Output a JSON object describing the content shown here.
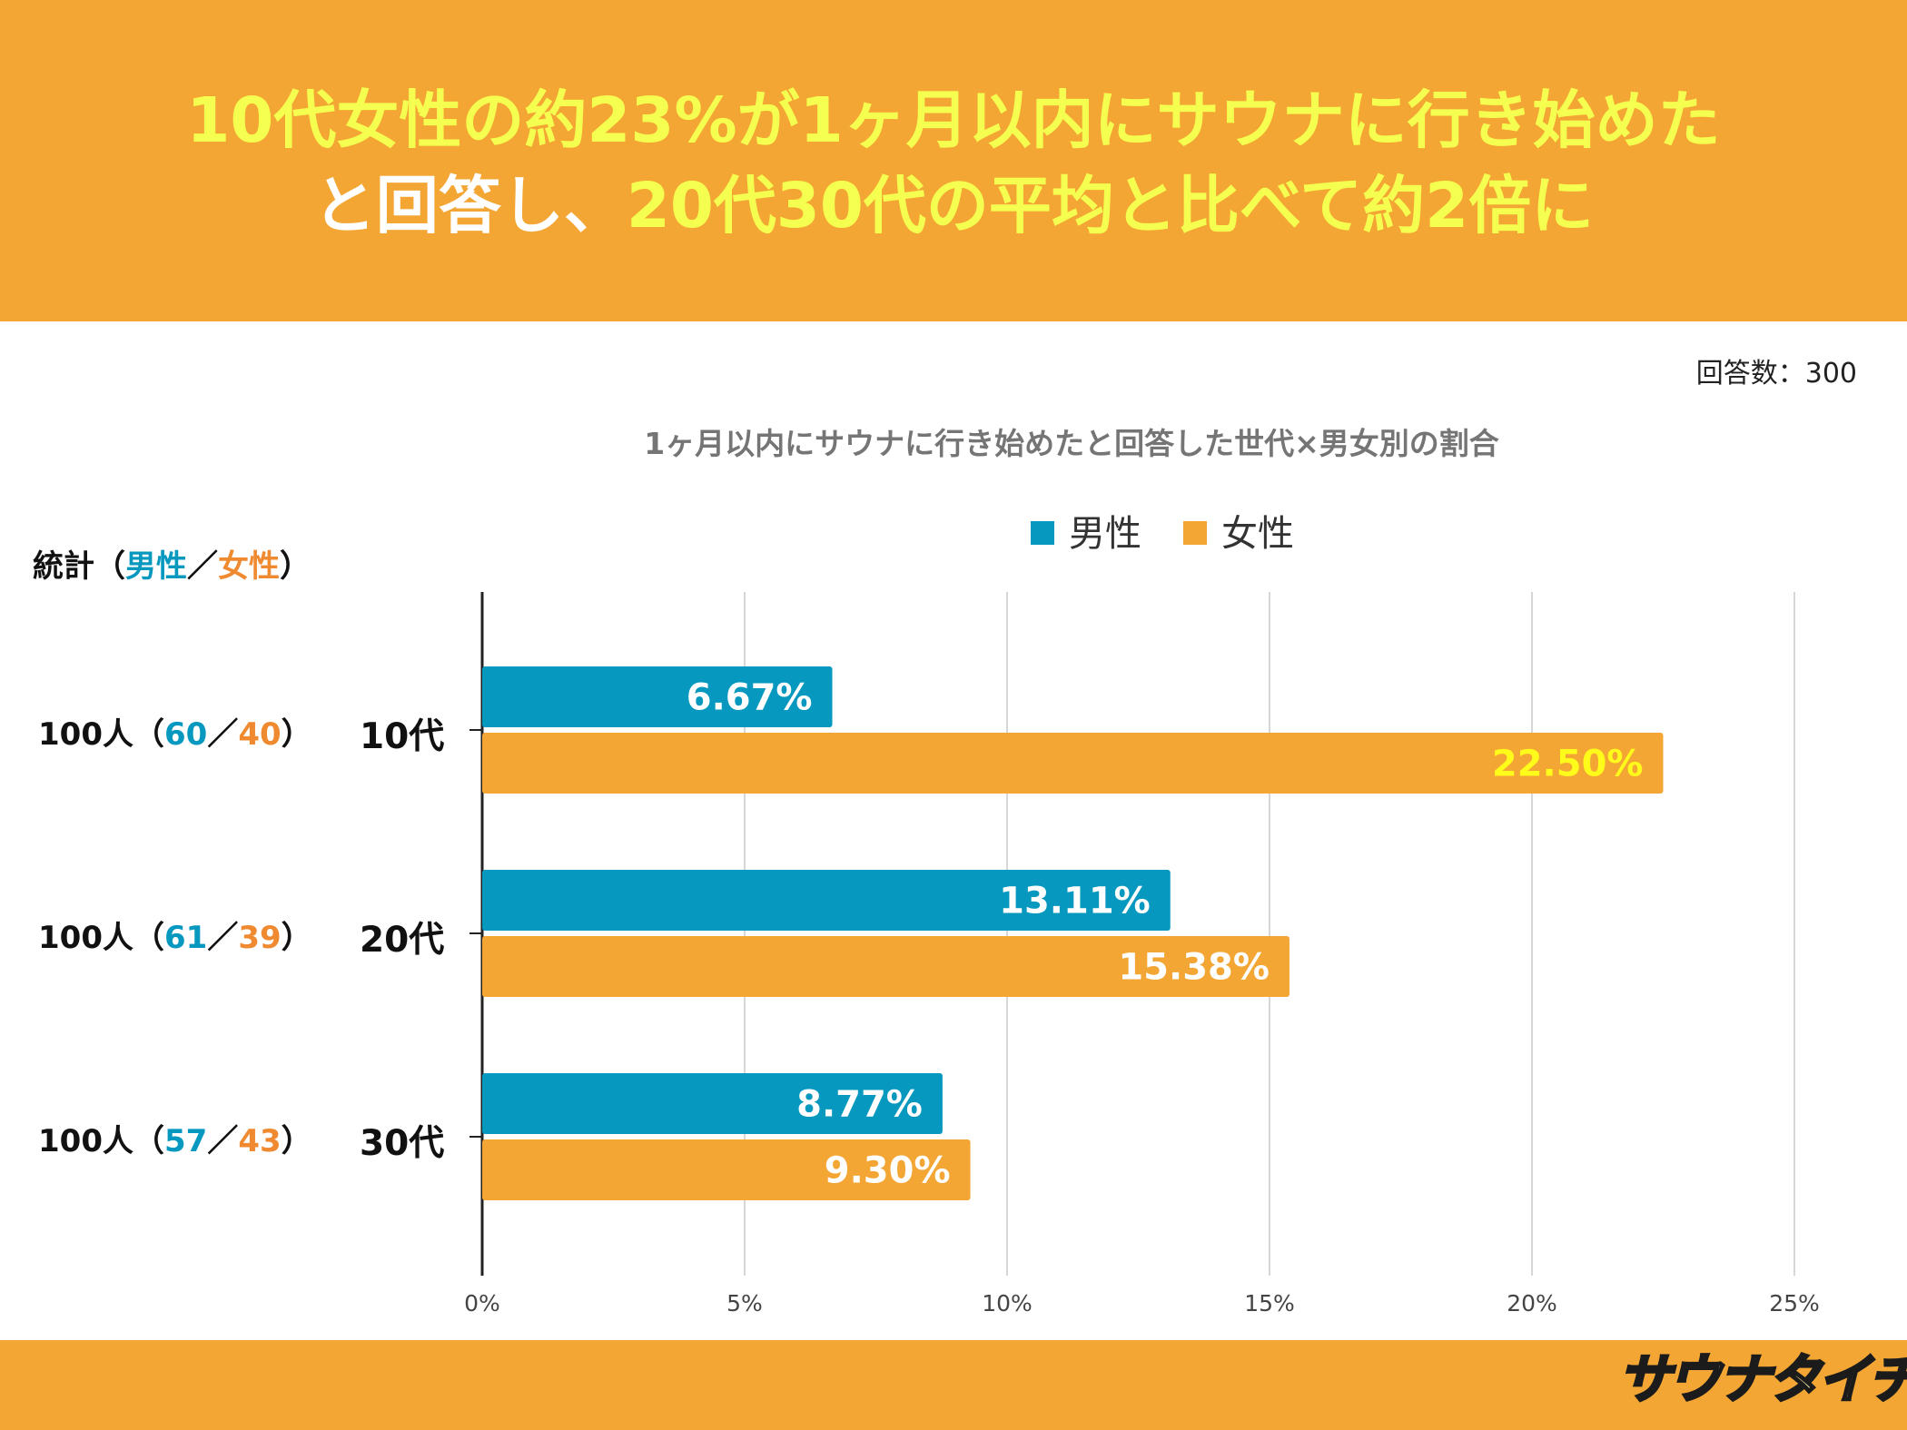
{
  "header": {
    "line1": "10代女性の約23%が1ヶ月以内にサウナに行き始めた",
    "line2_prefix": "と回答し、",
    "line2_highlight": "20代30代の平均と比べて約2倍に"
  },
  "sample_note": "回答数：300",
  "stats": {
    "label": "統計",
    "open": "（",
    "male_word": "男性",
    "slash": "／",
    "female_word": "女性",
    "close": "）",
    "rows": [
      {
        "total": "100人",
        "male": "60",
        "female": "40"
      },
      {
        "total": "100人",
        "male": "61",
        "female": "39"
      },
      {
        "total": "100人",
        "male": "57",
        "female": "43"
      }
    ]
  },
  "logo_text": "サウナタイチ",
  "colors": {
    "band": "#f3a634",
    "headline_yellow": "#f5ff4f",
    "male": "#0798bf",
    "female": "#f3a634",
    "female_label_on_max": "#fffb1a"
  },
  "chart_data": {
    "type": "bar",
    "orientation": "horizontal",
    "title": "1ヶ月以内にサウナに行き始めたと回答した世代×男女別の割合",
    "categories": [
      "10代",
      "20代",
      "30代"
    ],
    "series": [
      {
        "name": "男性",
        "values": [
          6.67,
          13.11,
          8.77
        ],
        "labels": [
          "6.67%",
          "13.11%",
          "8.77%"
        ]
      },
      {
        "name": "女性",
        "values": [
          22.5,
          15.38,
          9.3
        ],
        "labels": [
          "22.50%",
          "15.38%",
          "9.30%"
        ]
      }
    ],
    "xlim": [
      0,
      25
    ],
    "xticks": [
      0,
      5,
      10,
      15,
      20,
      25
    ],
    "xtick_labels": [
      "0%",
      "5%",
      "10%",
      "15%",
      "20%",
      "25%"
    ],
    "grid": true,
    "legend": "top-center"
  }
}
